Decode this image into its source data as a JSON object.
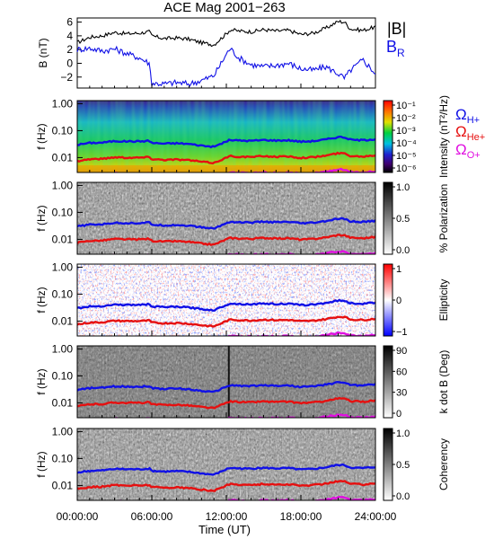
{
  "title": "ACE Mag 2001−263",
  "xlabel": "Time (UT)",
  "xticks": [
    "00:00:00",
    "06:00:00",
    "12:00:00",
    "18:00:00",
    "24:00:00"
  ],
  "colors": {
    "B_total": "#000000",
    "B_R": "#1010e6",
    "H": "#1010e6",
    "He": "#e61010",
    "O": "#e010e0"
  },
  "chart_data": [
    {
      "type": "line",
      "panel": "magnetic field",
      "ylabel": "B (nT)",
      "ylim": [
        -3.6,
        6.6
      ],
      "yticks": [
        "6",
        "4",
        "2",
        "0",
        "−2"
      ],
      "series": [
        {
          "name": "|B|",
          "x_hours": [
            0,
            1,
            2,
            3,
            4,
            5,
            5.8,
            6,
            7,
            8,
            9,
            10,
            11,
            12,
            12.3,
            13,
            14,
            15,
            16,
            17,
            18,
            19,
            20,
            21,
            21.5,
            22,
            23,
            24
          ],
          "values": [
            3.0,
            3.8,
            4.0,
            4.5,
            4.3,
            4.4,
            4.6,
            4.0,
            3.6,
            3.7,
            3.5,
            3.0,
            2.7,
            4.3,
            4.9,
            4.7,
            4.6,
            4.9,
            4.7,
            4.8,
            4.2,
            4.4,
            5.1,
            6.1,
            6.0,
            5.0,
            4.8,
            5.3
          ]
        },
        {
          "name": "B_R",
          "x_hours": [
            0,
            1,
            2,
            3,
            4,
            5,
            5.8,
            6,
            7,
            8,
            9,
            10,
            11,
            12,
            12.3,
            13,
            14,
            15,
            16,
            17,
            18,
            19,
            20,
            21,
            21.5,
            22,
            23,
            24
          ],
          "values": [
            2.0,
            2.2,
            1.8,
            2.1,
            1.4,
            0.8,
            0.0,
            -2.9,
            -3.0,
            -2.8,
            -3.0,
            -2.5,
            -1.8,
            1.3,
            2.2,
            0.8,
            -0.2,
            -0.5,
            -0.3,
            0.0,
            -0.8,
            -1.0,
            -0.5,
            -1.5,
            -2.2,
            -1.0,
            0.5,
            -1.5
          ]
        }
      ],
      "legend": [
        "|B|",
        "B_R"
      ]
    },
    {
      "type": "heatmap",
      "panel": "intensity",
      "ylabel": "f (Hz)",
      "yticks": [
        "1.00",
        "0.10",
        "0.01"
      ],
      "colorbar_label": "Intensity (nT²/Hz)",
      "colorbar_ticks": [
        "10⁻¹",
        "10⁻²",
        "10⁻³",
        "10⁻⁴",
        "10⁻⁵",
        "10⁻⁶"
      ],
      "legend": [
        "ΩH+",
        "ΩHe+",
        "ΩO+"
      ]
    },
    {
      "type": "heatmap",
      "panel": "polarization",
      "ylabel": "f (Hz)",
      "yticks": [
        "1.00",
        "0.10",
        "0.01"
      ],
      "colorbar_label": "% Polarization",
      "colorbar_ticks": [
        "1.0",
        "0.5",
        "0.0"
      ]
    },
    {
      "type": "heatmap",
      "panel": "ellipticity",
      "ylabel": "f (Hz)",
      "yticks": [
        "1.00",
        "0.10",
        "0.01"
      ],
      "colorbar_label": "Ellipticity",
      "colorbar_ticks": [
        "1",
        "0",
        "−1"
      ]
    },
    {
      "type": "heatmap",
      "panel": "wave normal angle",
      "ylabel": "f (Hz)",
      "yticks": [
        "1.00",
        "0.10",
        "0.01"
      ],
      "colorbar_label": "k dot B (Deg)",
      "colorbar_ticks": [
        "90",
        "60",
        "30",
        "0"
      ]
    },
    {
      "type": "heatmap",
      "panel": "coherency",
      "ylabel": "f (Hz)",
      "yticks": [
        "1.00",
        "0.10",
        "0.01"
      ],
      "colorbar_label": "Coherency",
      "colorbar_ticks": [
        "1.0",
        "0.5",
        "0.0"
      ]
    }
  ],
  "gyrofrequency_lines": {
    "x_hours": [
      0,
      1,
      2,
      3,
      4,
      5,
      5.8,
      6,
      7,
      8,
      9,
      10,
      11,
      12,
      12.3,
      13,
      14,
      15,
      16,
      17,
      18,
      19,
      20,
      21,
      21.5,
      22,
      23,
      24
    ],
    "H_plus_hz": [
      0.03,
      0.035,
      0.036,
      0.041,
      0.04,
      0.04,
      0.042,
      0.035,
      0.033,
      0.034,
      0.032,
      0.028,
      0.025,
      0.04,
      0.045,
      0.043,
      0.042,
      0.045,
      0.043,
      0.044,
      0.039,
      0.041,
      0.047,
      0.058,
      0.057,
      0.046,
      0.044,
      0.049
    ],
    "He_plus_hz": [
      0.0075,
      0.0088,
      0.009,
      0.0103,
      0.01,
      0.01,
      0.0105,
      0.0088,
      0.0083,
      0.0085,
      0.008,
      0.007,
      0.0063,
      0.01,
      0.0113,
      0.0108,
      0.0105,
      0.0113,
      0.0108,
      0.011,
      0.0098,
      0.0103,
      0.0118,
      0.0145,
      0.0143,
      0.0115,
      0.011,
      0.0123
    ],
    "O_plus_hz": [
      0.0019,
      0.0022,
      0.0023,
      0.0026,
      0.0025,
      0.0025,
      0.0026,
      0.0022,
      0.0021,
      0.0021,
      0.002,
      0.0018,
      0.0016,
      0.0025,
      0.0028,
      0.0027,
      0.0026,
      0.0028,
      0.0027,
      0.0028,
      0.0025,
      0.0026,
      0.003,
      0.0036,
      0.0036,
      0.0029,
      0.0028,
      0.0031
    ]
  }
}
